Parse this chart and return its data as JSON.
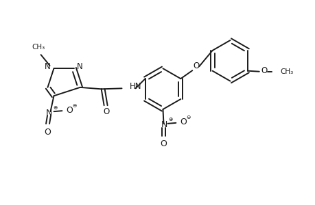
{
  "bg_color": "#ffffff",
  "line_color": "#1a1a1a",
  "lw": 1.4,
  "figsize": [
    4.6,
    3.0
  ],
  "dpi": 100,
  "xlim": [
    0,
    9.2
  ],
  "ylim": [
    0,
    6.0
  ]
}
